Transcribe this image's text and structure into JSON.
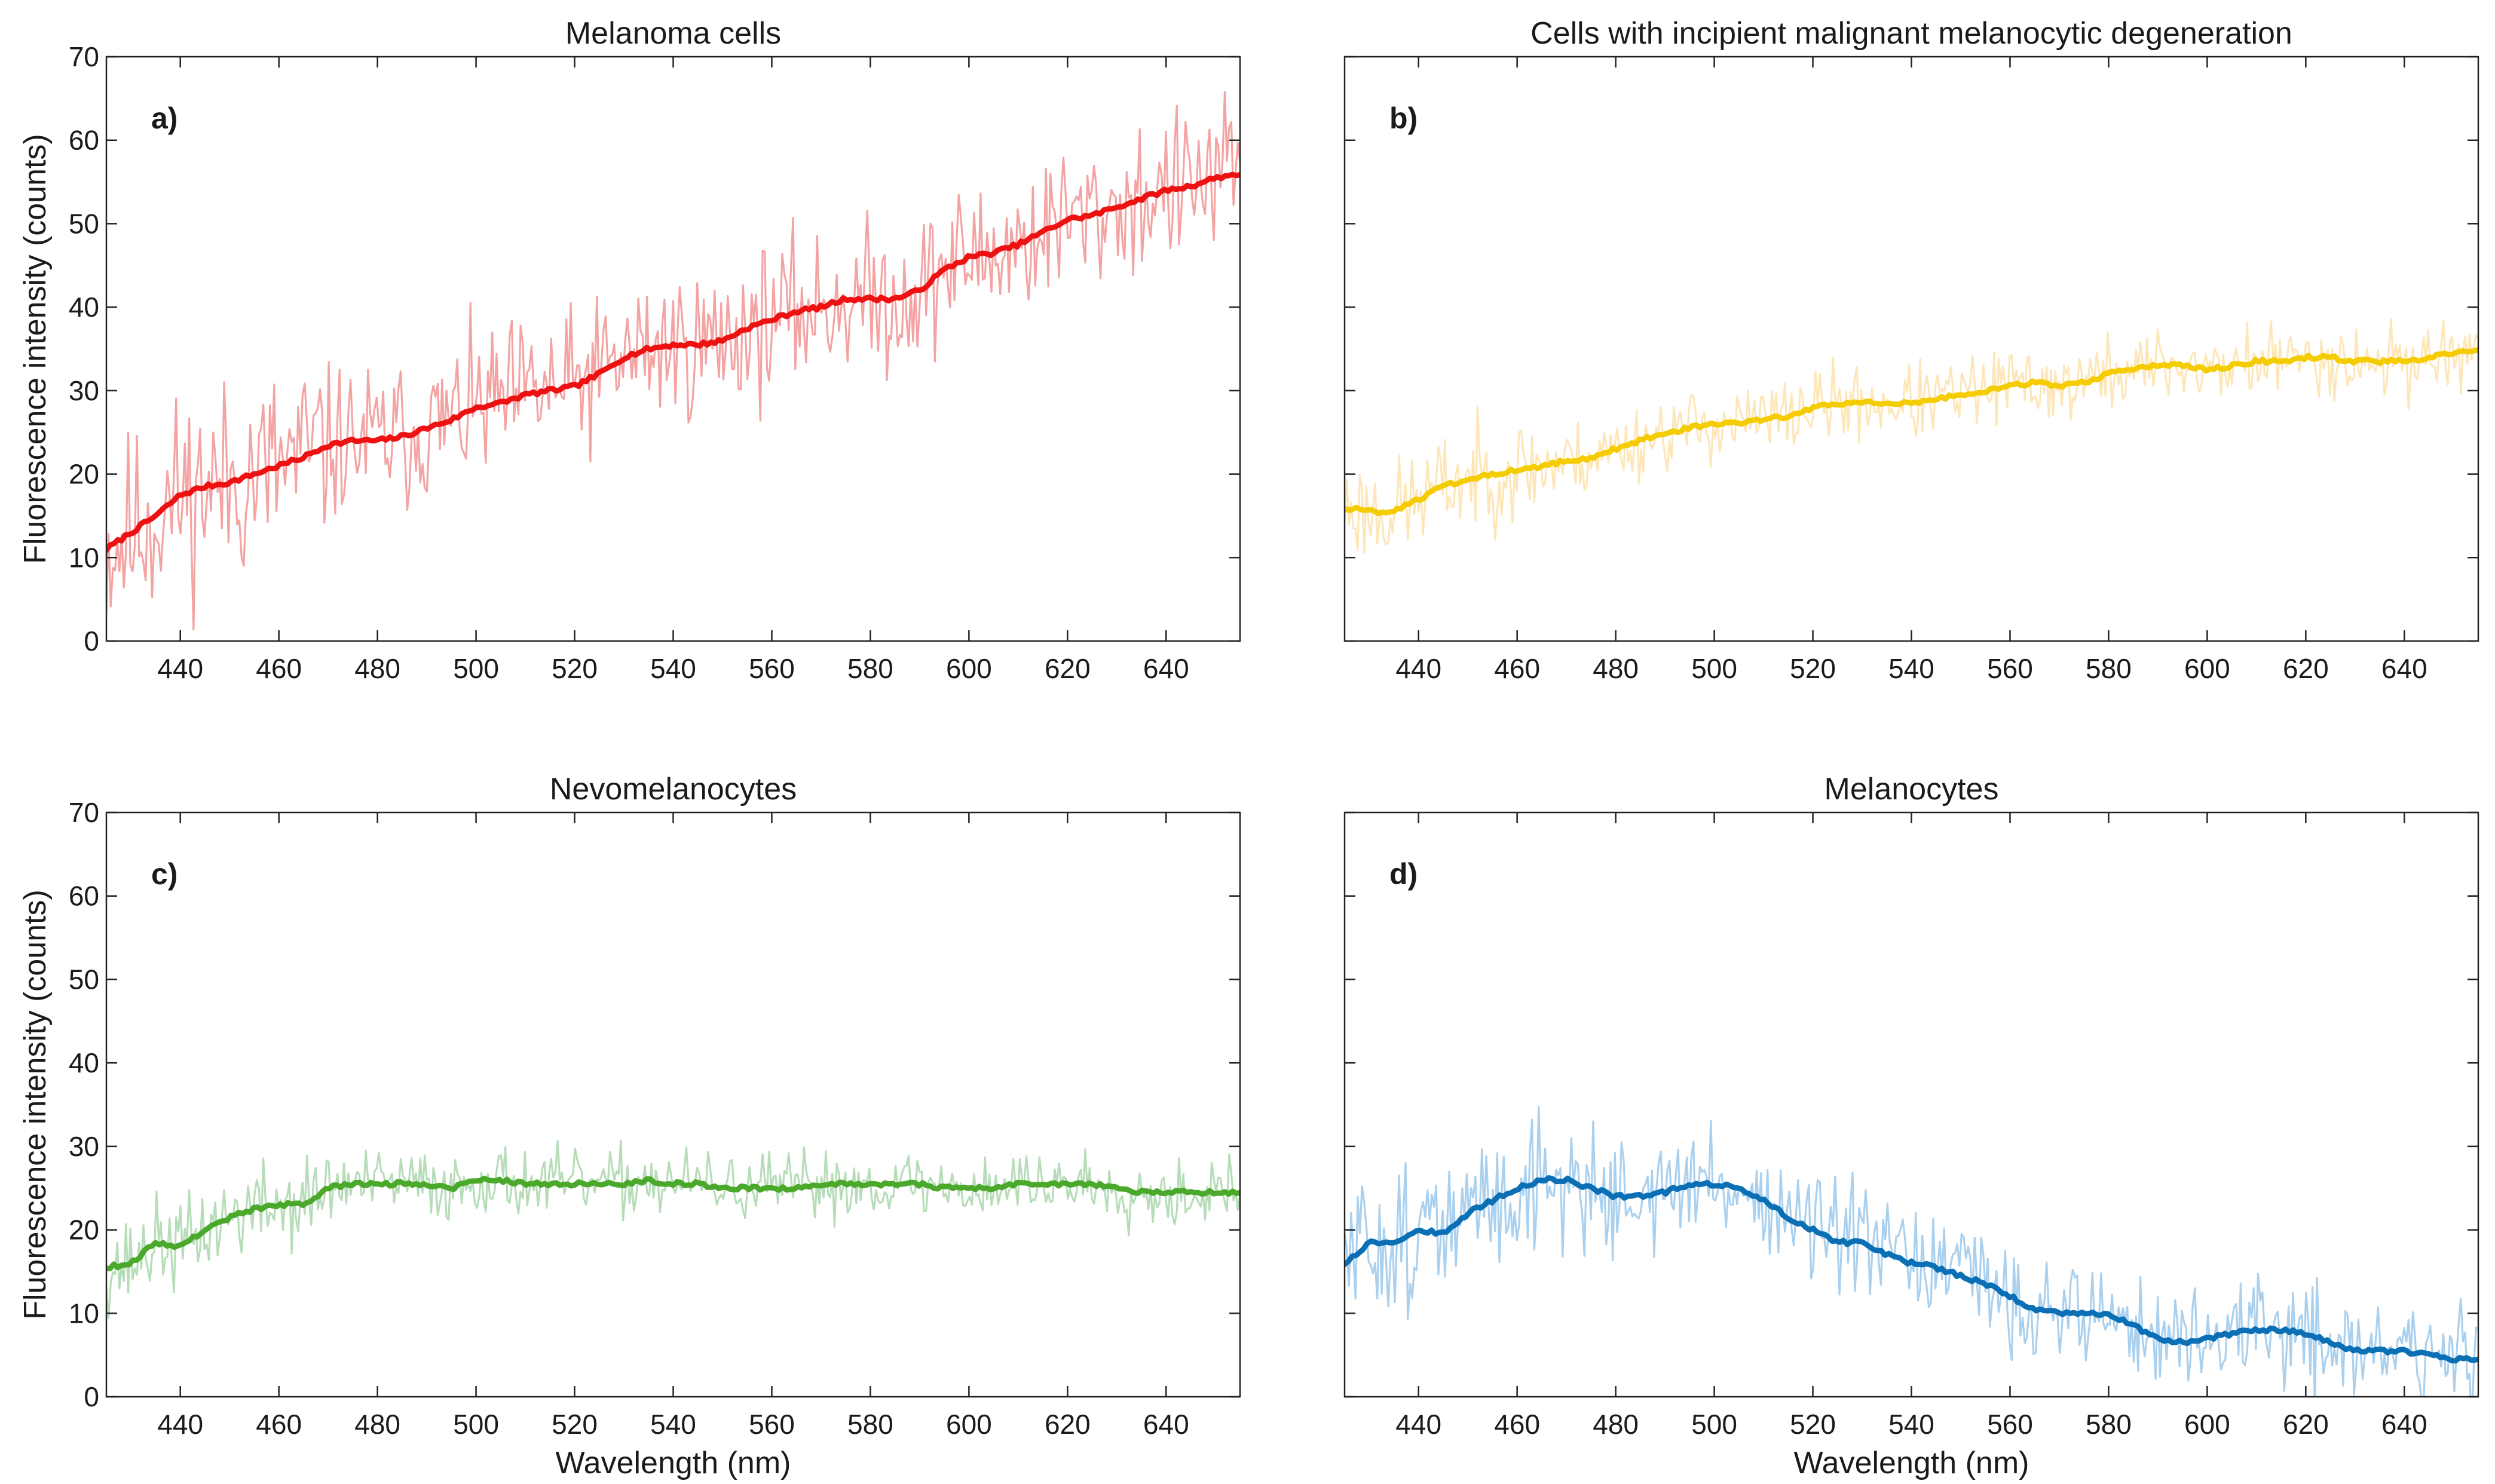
{
  "figure": {
    "x_axis_label": "Wavelength (nm)",
    "y_axis_label": "Fluorescence intensity (counts)"
  },
  "chart_data": [
    {
      "type": "line",
      "panel_label": "a)",
      "title": "Melanoma cells",
      "xlabel": "",
      "ylabel": "Fluorescence intensity (counts)",
      "xlim": [
        425,
        655
      ],
      "ylim": [
        0,
        70
      ],
      "xticks": [
        440,
        460,
        480,
        500,
        520,
        540,
        560,
        580,
        600,
        620,
        640
      ],
      "yticks": [
        0,
        10,
        20,
        30,
        40,
        50,
        60,
        70
      ],
      "show_x_tick_labels": true,
      "show_y_tick_labels": true,
      "grid": false,
      "series": [
        {
          "role": "smoothed",
          "color": "#ee1111",
          "x": [
            425,
            430,
            435,
            440,
            445,
            450,
            455,
            460,
            465,
            470,
            475,
            480,
            485,
            490,
            495,
            500,
            505,
            510,
            515,
            520,
            525,
            530,
            535,
            540,
            545,
            550,
            555,
            560,
            565,
            570,
            575,
            580,
            585,
            590,
            595,
            600,
            605,
            610,
            615,
            620,
            625,
            630,
            635,
            640,
            645,
            650,
            655
          ],
          "values": [
            11,
            13,
            15,
            17.5,
            18.5,
            19,
            20,
            21,
            22,
            23.5,
            24,
            24,
            24.5,
            25.5,
            26.5,
            28,
            28.5,
            29.5,
            30,
            30.5,
            32,
            34,
            35,
            35.5,
            35.5,
            36,
            37.5,
            38.5,
            39.5,
            40,
            41,
            41,
            41,
            42,
            44.5,
            46,
            46.5,
            47.5,
            49,
            50.5,
            51,
            52,
            53,
            54,
            54.5,
            55.5,
            56
          ]
        },
        {
          "role": "raw",
          "color": "#f4a3a3",
          "noise": 9.0,
          "seed": 11,
          "x": [
            425,
            430,
            435,
            440,
            445,
            450,
            455,
            460,
            465,
            470,
            475,
            480,
            485,
            490,
            495,
            500,
            505,
            510,
            515,
            520,
            525,
            530,
            535,
            540,
            545,
            550,
            555,
            560,
            565,
            570,
            575,
            580,
            585,
            590,
            595,
            600,
            605,
            610,
            615,
            620,
            625,
            630,
            635,
            640,
            645,
            650,
            655
          ],
          "values": [
            11,
            13,
            15,
            17.5,
            18.5,
            19,
            20,
            21,
            22,
            23.5,
            24,
            24,
            24.5,
            25.5,
            26.5,
            28,
            28.5,
            29.5,
            30,
            30.5,
            32,
            34,
            35,
            35.5,
            35.5,
            36,
            37.5,
            38.5,
            39.5,
            40,
            41,
            41,
            41,
            42,
            44.5,
            46,
            46.5,
            47.5,
            49,
            50.5,
            51,
            52,
            53,
            54,
            54.5,
            55.5,
            56
          ]
        }
      ]
    },
    {
      "type": "line",
      "panel_label": "b)",
      "title": "Cells with incipient malignant melanocytic degeneration",
      "xlabel": "",
      "ylabel": "",
      "xlim": [
        425,
        655
      ],
      "ylim": [
        0,
        70
      ],
      "xticks": [
        440,
        460,
        480,
        500,
        520,
        540,
        560,
        580,
        600,
        620,
        640
      ],
      "yticks": [
        0,
        10,
        20,
        30,
        40,
        50,
        60,
        70
      ],
      "show_x_tick_labels": true,
      "show_y_tick_labels": false,
      "grid": false,
      "series": [
        {
          "role": "smoothed",
          "color": "#f5cc00",
          "x": [
            425,
            430,
            435,
            440,
            445,
            450,
            455,
            460,
            465,
            470,
            475,
            480,
            485,
            490,
            495,
            500,
            505,
            510,
            515,
            520,
            525,
            530,
            535,
            540,
            545,
            550,
            555,
            560,
            565,
            570,
            575,
            580,
            585,
            590,
            595,
            600,
            605,
            610,
            615,
            620,
            625,
            630,
            635,
            640,
            645,
            650,
            655
          ],
          "values": [
            16,
            15.5,
            15.5,
            17,
            18.5,
            19.5,
            20,
            20.5,
            21,
            21.5,
            22,
            23,
            24,
            25,
            25.5,
            26,
            26,
            26.5,
            27,
            28,
            28.5,
            28.5,
            28.5,
            28.5,
            29,
            29.5,
            30,
            30.5,
            31,
            30.5,
            31,
            32,
            32.5,
            33,
            33,
            32.5,
            33,
            33.5,
            33.5,
            34,
            34,
            33.5,
            33.5,
            33.5,
            34,
            34.5,
            35
          ]
        },
        {
          "role": "raw",
          "color": "#fde6b8",
          "noise": 4.5,
          "seed": 23,
          "x": [
            425,
            430,
            435,
            440,
            445,
            450,
            455,
            460,
            465,
            470,
            475,
            480,
            485,
            490,
            495,
            500,
            505,
            510,
            515,
            520,
            525,
            530,
            535,
            540,
            545,
            550,
            555,
            560,
            565,
            570,
            575,
            580,
            585,
            590,
            595,
            600,
            605,
            610,
            615,
            620,
            625,
            630,
            635,
            640,
            645,
            650,
            655
          ],
          "values": [
            16,
            15.5,
            15.5,
            17,
            18.5,
            19.5,
            20,
            20.5,
            21,
            21.5,
            22,
            23,
            24,
            25,
            25.5,
            26,
            26,
            26.5,
            27,
            28,
            28.5,
            28.5,
            28.5,
            28.5,
            29,
            29.5,
            30,
            30.5,
            31,
            30.5,
            31,
            32,
            32.5,
            33,
            33,
            32.5,
            33,
            33.5,
            33.5,
            34,
            34,
            33.5,
            33.5,
            33.5,
            34,
            34.5,
            35
          ]
        }
      ]
    },
    {
      "type": "line",
      "panel_label": "c)",
      "title": "Nevomelanocytes",
      "xlabel": "Wavelength (nm)",
      "ylabel": "Fluorescence intensity (counts)",
      "xlim": [
        425,
        655
      ],
      "ylim": [
        0,
        70
      ],
      "xticks": [
        440,
        460,
        480,
        500,
        520,
        540,
        560,
        580,
        600,
        620,
        640
      ],
      "yticks": [
        0,
        10,
        20,
        30,
        40,
        50,
        60,
        70
      ],
      "show_x_tick_labels": true,
      "show_y_tick_labels": true,
      "grid": false,
      "series": [
        {
          "role": "smoothed",
          "color": "#4aa82a",
          "x": [
            425,
            430,
            435,
            440,
            445,
            450,
            455,
            460,
            465,
            470,
            475,
            480,
            485,
            490,
            495,
            500,
            505,
            510,
            515,
            520,
            525,
            530,
            535,
            540,
            545,
            550,
            555,
            560,
            565,
            570,
            575,
            580,
            585,
            590,
            595,
            600,
            605,
            610,
            615,
            620,
            625,
            630,
            635,
            640,
            645,
            650,
            655
          ],
          "values": [
            15.5,
            16,
            18.5,
            18,
            20,
            21.5,
            22.5,
            23,
            23,
            25,
            25.5,
            25.5,
            25.5,
            25.5,
            25,
            26,
            26,
            25.5,
            25.5,
            25.5,
            25.5,
            25.5,
            26,
            25.5,
            25.5,
            25,
            25,
            25,
            25,
            25.5,
            25.5,
            25.5,
            25.5,
            25.5,
            25,
            25,
            25,
            25.5,
            25.5,
            25.5,
            25.5,
            25,
            24.5,
            24.5,
            24.5,
            24.5,
            24.5
          ]
        },
        {
          "role": "raw",
          "color": "#b6dcb8",
          "noise": 4.0,
          "seed": 37,
          "x": [
            425,
            430,
            435,
            440,
            445,
            450,
            455,
            460,
            465,
            470,
            475,
            480,
            485,
            490,
            495,
            500,
            505,
            510,
            515,
            520,
            525,
            530,
            535,
            540,
            545,
            550,
            555,
            560,
            565,
            570,
            575,
            580,
            585,
            590,
            595,
            600,
            605,
            610,
            615,
            620,
            625,
            630,
            635,
            640,
            645,
            650,
            655
          ],
          "values": [
            15.5,
            16,
            18.5,
            18,
            20,
            21.5,
            22.5,
            23,
            23,
            25,
            25.5,
            25.5,
            25.5,
            25.5,
            25,
            26,
            26,
            25.5,
            25.5,
            25.5,
            25.5,
            25.5,
            26,
            25.5,
            25.5,
            25,
            25,
            25,
            25,
            25.5,
            25.5,
            25.5,
            25.5,
            25.5,
            25,
            25,
            25,
            25.5,
            25.5,
            25.5,
            25.5,
            25,
            24.5,
            24.5,
            24.5,
            24.5,
            24.5
          ]
        }
      ]
    },
    {
      "type": "line",
      "panel_label": "d)",
      "title": "Melanocytes",
      "xlabel": "Wavelength (nm)",
      "ylabel": "",
      "xlim": [
        425,
        655
      ],
      "ylim": [
        0,
        70
      ],
      "xticks": [
        440,
        460,
        480,
        500,
        520,
        540,
        560,
        580,
        600,
        620,
        640
      ],
      "yticks": [
        0,
        10,
        20,
        30,
        40,
        50,
        60,
        70
      ],
      "show_x_tick_labels": true,
      "show_y_tick_labels": false,
      "grid": false,
      "series": [
        {
          "role": "smoothed",
          "color": "#0a6fb4",
          "x": [
            425,
            430,
            435,
            440,
            445,
            450,
            455,
            460,
            465,
            470,
            475,
            480,
            485,
            490,
            495,
            500,
            505,
            510,
            515,
            520,
            525,
            530,
            535,
            540,
            545,
            550,
            555,
            560,
            565,
            570,
            575,
            580,
            585,
            590,
            595,
            600,
            605,
            610,
            615,
            620,
            625,
            630,
            635,
            640,
            645,
            650,
            655
          ],
          "values": [
            16,
            18.5,
            18.5,
            20,
            19.5,
            22,
            23.5,
            25,
            26,
            26,
            25,
            24,
            24,
            24.5,
            25.5,
            25.5,
            25,
            23.5,
            21.5,
            20,
            18.5,
            18.5,
            17,
            16,
            15.5,
            14.5,
            13.5,
            12,
            10.5,
            10,
            10,
            10,
            8.5,
            7,
            6.5,
            7,
            7.5,
            8,
            8,
            7.5,
            6.5,
            5.5,
            5.5,
            5.5,
            5,
            4.5,
            4.5
          ]
        },
        {
          "role": "raw",
          "color": "#a9d0ee",
          "noise": 6.5,
          "seed": 51,
          "x": [
            425,
            430,
            435,
            440,
            445,
            450,
            455,
            460,
            465,
            470,
            475,
            480,
            485,
            490,
            495,
            500,
            505,
            510,
            515,
            520,
            525,
            530,
            535,
            540,
            545,
            550,
            555,
            560,
            565,
            570,
            575,
            580,
            585,
            590,
            595,
            600,
            605,
            610,
            615,
            620,
            625,
            630,
            635,
            640,
            645,
            650,
            655
          ],
          "values": [
            16,
            18.5,
            18.5,
            20,
            19.5,
            22,
            23.5,
            25,
            26,
            26,
            25,
            24,
            24,
            24.5,
            25.5,
            25.5,
            25,
            23.5,
            21.5,
            20,
            18.5,
            18.5,
            17,
            16,
            15.5,
            14.5,
            13.5,
            12,
            10.5,
            10,
            10,
            10,
            8.5,
            7,
            6.5,
            7,
            7.5,
            8,
            8,
            7.5,
            6.5,
            5.5,
            5.5,
            5.5,
            5,
            4.5,
            4.5
          ]
        }
      ]
    }
  ]
}
